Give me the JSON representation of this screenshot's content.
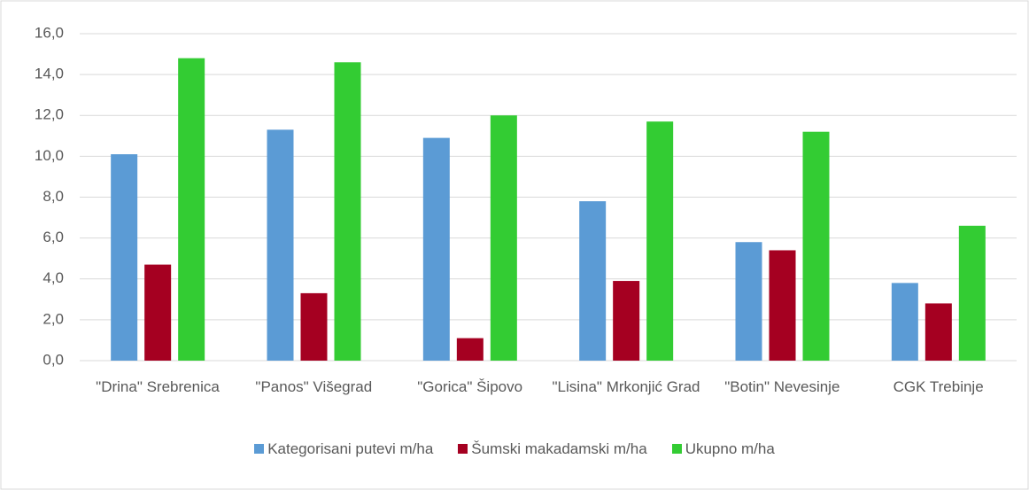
{
  "chart_data": {
    "type": "bar",
    "categories": [
      "\"Drina\" Srebrenica",
      "\"Panos\" Višegrad",
      "\"Gorica\" Šipovo",
      "\"Lisina\" Mrkonjić Grad",
      "\"Botin\" Nevesinje",
      "CGK Trebinje"
    ],
    "series": [
      {
        "name": "Kategorisani putevi  m/ha",
        "color": "#5b9bd5",
        "values": [
          10.1,
          11.3,
          10.9,
          7.8,
          5.8,
          3.8
        ]
      },
      {
        "name": "Šumski makadamski m/ha",
        "color": "#a50021",
        "values": [
          4.7,
          3.3,
          1.1,
          3.9,
          5.4,
          2.8
        ]
      },
      {
        "name": "Ukupno m/ha",
        "color": "#33cc33",
        "values": [
          14.8,
          14.6,
          12.0,
          11.7,
          11.2,
          6.6
        ]
      }
    ],
    "ylim": [
      0,
      16
    ],
    "yticks": [
      {
        "value": 0,
        "label": "0,0"
      },
      {
        "value": 2,
        "label": "2,0"
      },
      {
        "value": 4,
        "label": "4,0"
      },
      {
        "value": 6,
        "label": "6,0"
      },
      {
        "value": 8,
        "label": "8,0"
      },
      {
        "value": 10,
        "label": "10,0"
      },
      {
        "value": 12,
        "label": "12,0"
      },
      {
        "value": 14,
        "label": "14,0"
      },
      {
        "value": 16,
        "label": "16,0"
      }
    ],
    "grid": true,
    "legend": "bottom"
  }
}
